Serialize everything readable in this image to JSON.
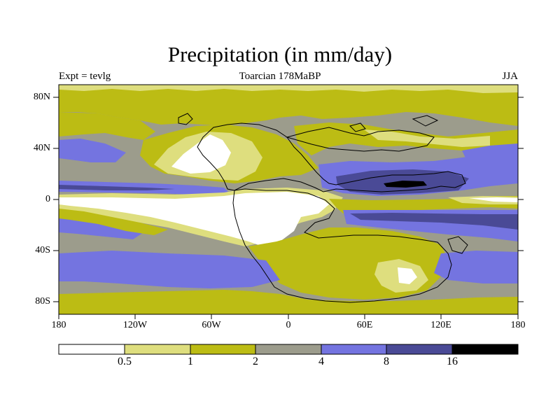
{
  "title": "Precipitation (in mm/day)",
  "left_label": "Expt = tevlg",
  "center_label": "Toarcian 178MaBP",
  "right_label": "JJA",
  "lat_labels": [
    "80N",
    "40N",
    "0",
    "40S",
    "80S"
  ],
  "lon_labels": [
    "180",
    "120W",
    "60W",
    "0",
    "60E",
    "120E",
    "180"
  ],
  "colorbar": {
    "labels": [
      "0.5",
      "1",
      "2",
      "4",
      "8",
      "16"
    ],
    "colors": [
      "#ffffff",
      "#dede7e",
      "#bcbc14",
      "#9c9c8c",
      "#7474e0",
      "#4a4a96",
      "#000000"
    ]
  },
  "palette": {
    "white": "#ffffff",
    "light_yellow": "#dede7e",
    "olive": "#bcbc14",
    "gray": "#9c9c8c",
    "light_blue": "#7474e0",
    "dark_blue": "#4a4a96",
    "black": "#000000"
  }
}
